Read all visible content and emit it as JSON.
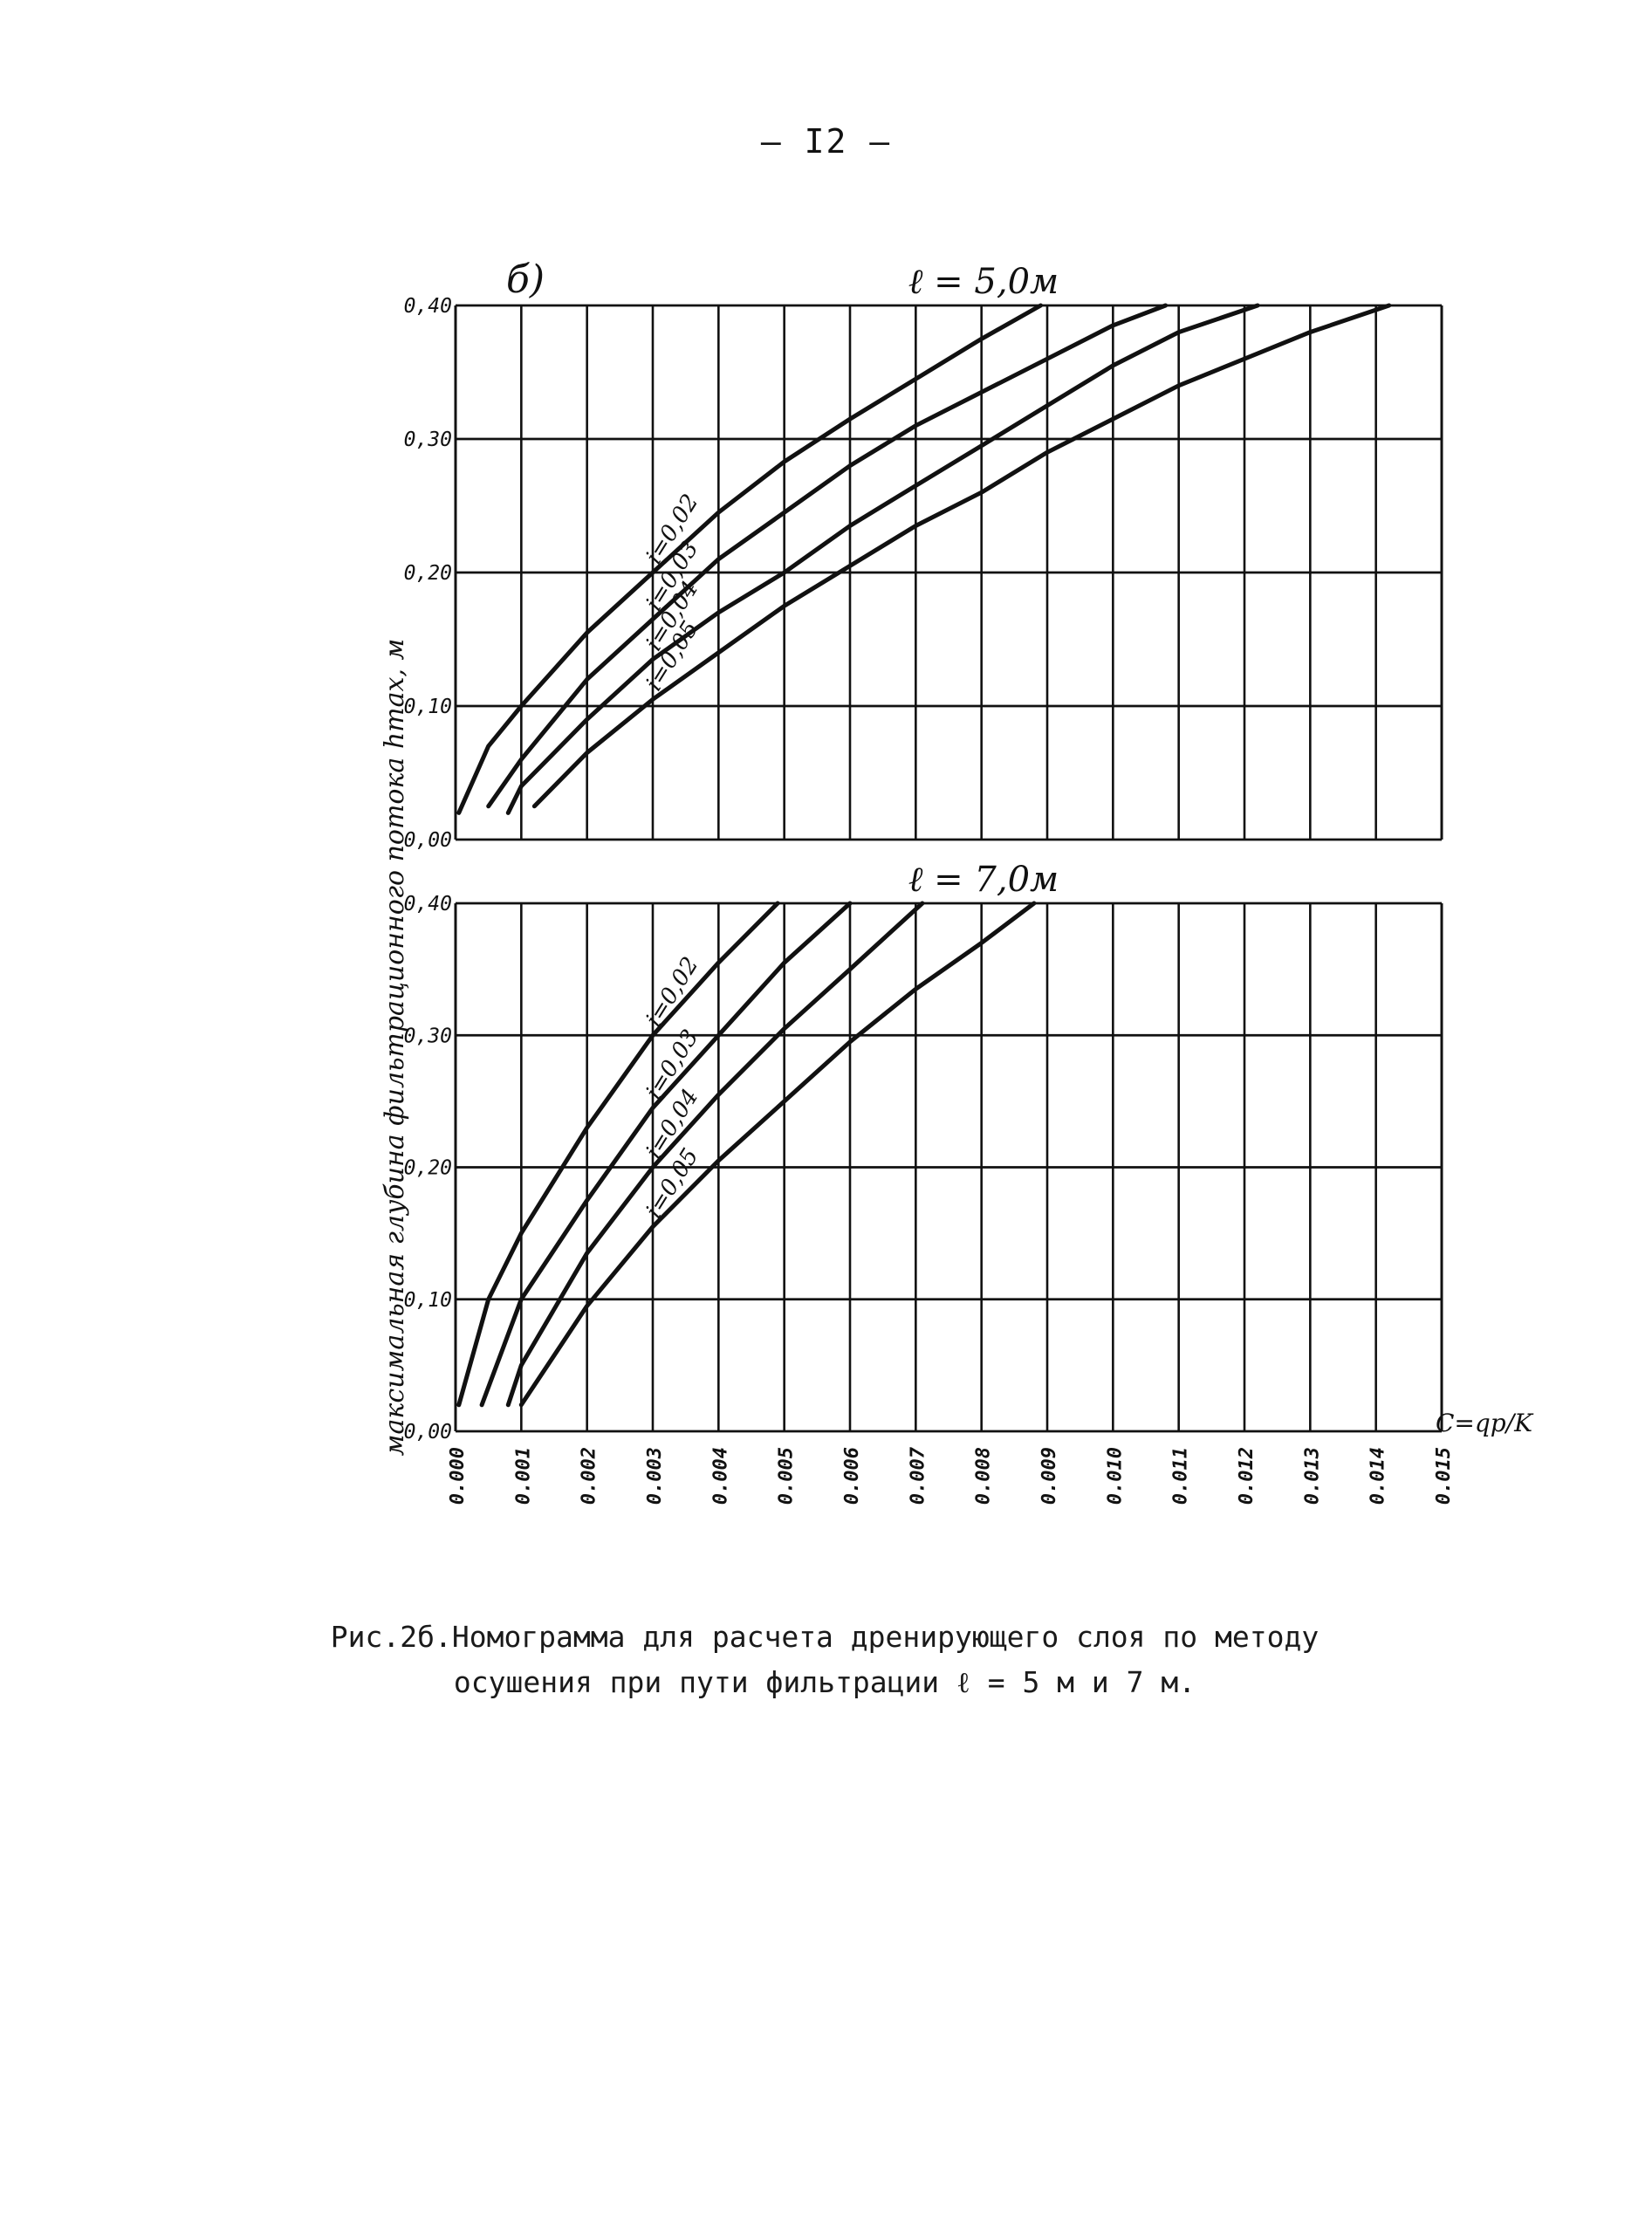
{
  "page": {
    "number": "— I2 —"
  },
  "panel_marker": "б)",
  "y_axis_label": "максимальная  глубина  фильтрационного  потока  hmax, м",
  "x_axis_label": "C=qp/K",
  "caption": {
    "line1": "Рис.2б.Номограмма для расчета дренирующего слоя по методу",
    "line2": "осушения при пути фильтрации ℓ = 5 м и 7 м."
  },
  "chart_data": [
    {
      "type": "line",
      "title": "ℓ = 5,0м",
      "xlabel": "C=qp/K",
      "ylabel": "hmax, м",
      "xlim": [
        0,
        0.015
      ],
      "ylim": [
        0,
        0.4
      ],
      "grid": true,
      "x_ticks": [
        "0.000",
        "0.001",
        "0.002",
        "0.003",
        "0.004",
        "0.005",
        "0.006",
        "0.007",
        "0.008",
        "0.009",
        "0.010",
        "0.011",
        "0.012",
        "0.013",
        "0.014",
        "0.015"
      ],
      "y_ticks": [
        "0,00",
        "0,10",
        "0,20",
        "0,30",
        "0,40"
      ],
      "series": [
        {
          "name": "i=0,02",
          "x": [
            5e-05,
            0.0005,
            0.001,
            0.002,
            0.003,
            0.004,
            0.005,
            0.006,
            0.007,
            0.008,
            0.0089
          ],
          "y": [
            0.02,
            0.07,
            0.1,
            0.155,
            0.2,
            0.245,
            0.283,
            0.315,
            0.345,
            0.375,
            0.4
          ]
        },
        {
          "name": "i=0,03",
          "x": [
            0.0005,
            0.001,
            0.002,
            0.003,
            0.004,
            0.005,
            0.006,
            0.007,
            0.008,
            0.009,
            0.01,
            0.0108
          ],
          "y": [
            0.025,
            0.06,
            0.12,
            0.165,
            0.21,
            0.245,
            0.28,
            0.31,
            0.335,
            0.36,
            0.385,
            0.4
          ]
        },
        {
          "name": "i=0,04",
          "x": [
            0.0008,
            0.001,
            0.002,
            0.003,
            0.004,
            0.005,
            0.006,
            0.007,
            0.008,
            0.009,
            0.01,
            0.011,
            0.0122
          ],
          "y": [
            0.02,
            0.04,
            0.09,
            0.135,
            0.17,
            0.2,
            0.235,
            0.265,
            0.295,
            0.325,
            0.355,
            0.38,
            0.4
          ]
        },
        {
          "name": "i=0,05",
          "x": [
            0.0012,
            0.002,
            0.003,
            0.004,
            0.005,
            0.006,
            0.007,
            0.008,
            0.009,
            0.01,
            0.011,
            0.012,
            0.013,
            0.0142
          ],
          "y": [
            0.025,
            0.065,
            0.105,
            0.14,
            0.175,
            0.205,
            0.235,
            0.26,
            0.29,
            0.315,
            0.34,
            0.36,
            0.38,
            0.4
          ]
        }
      ]
    },
    {
      "type": "line",
      "title": "ℓ = 7,0м",
      "xlabel": "C=qp/K",
      "ylabel": "hmax, м",
      "xlim": [
        0,
        0.015
      ],
      "ylim": [
        0,
        0.4
      ],
      "grid": true,
      "x_ticks": [
        "0.000",
        "0.001",
        "0.002",
        "0.003",
        "0.004",
        "0.005",
        "0.006",
        "0.007",
        "0.008",
        "0.009",
        "0.010",
        "0.011",
        "0.012",
        "0.013",
        "0.014",
        "0.015"
      ],
      "y_ticks": [
        "0,00",
        "0,10",
        "0,20",
        "0,30",
        "0,40"
      ],
      "series": [
        {
          "name": "i=0,02",
          "x": [
            5e-05,
            0.0005,
            0.001,
            0.002,
            0.003,
            0.004,
            0.0049
          ],
          "y": [
            0.02,
            0.1,
            0.15,
            0.23,
            0.3,
            0.355,
            0.4
          ]
        },
        {
          "name": "i=0,03",
          "x": [
            0.0004,
            0.001,
            0.002,
            0.003,
            0.004,
            0.005,
            0.006
          ],
          "y": [
            0.02,
            0.1,
            0.175,
            0.245,
            0.3,
            0.355,
            0.4
          ]
        },
        {
          "name": "i=0,04",
          "x": [
            0.0008,
            0.001,
            0.002,
            0.003,
            0.004,
            0.005,
            0.006,
            0.0071
          ],
          "y": [
            0.02,
            0.05,
            0.135,
            0.2,
            0.255,
            0.305,
            0.35,
            0.4
          ]
        },
        {
          "name": "i=0,05",
          "x": [
            0.001,
            0.002,
            0.003,
            0.004,
            0.005,
            0.006,
            0.007,
            0.008,
            0.0088
          ],
          "y": [
            0.02,
            0.095,
            0.155,
            0.205,
            0.25,
            0.295,
            0.335,
            0.37,
            0.4
          ]
        }
      ]
    }
  ]
}
